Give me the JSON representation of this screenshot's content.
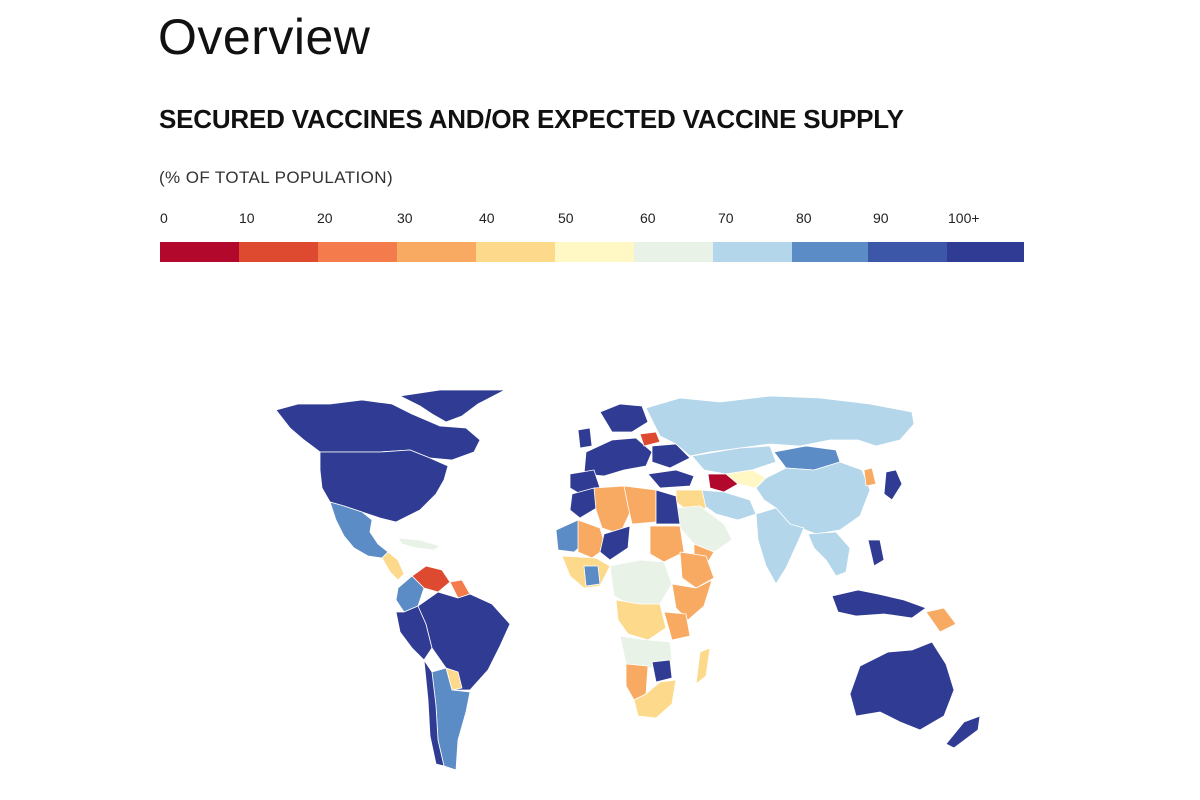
{
  "header": {
    "title": "Overview",
    "section_title": "SECURED VACCINES AND/OR EXPECTED VACCINE SUPPLY",
    "subtitle": "(% OF TOTAL POPULATION)"
  },
  "legend": {
    "ticks": [
      "0",
      "10",
      "20",
      "30",
      "40",
      "50",
      "60",
      "70",
      "80",
      "90",
      "100+"
    ],
    "colors": [
      "#b2082b",
      "#de4a30",
      "#f37b4c",
      "#f9aa62",
      "#fdd98c",
      "#fff8c4",
      "#e8f2e6",
      "#b3d6ea",
      "#5c8cc5",
      "#3c56a8",
      "#303c94"
    ]
  },
  "map": {
    "colors": {
      "ocean": "#ffffff",
      "c100": "#303c94",
      "c90": "#3c56a8",
      "c80": "#5c8cc5",
      "c70": "#b3d6ea",
      "c60": "#e8f2e6",
      "c50": "#fff8c4",
      "c40": "#fdd98c",
      "c30": "#f9aa62",
      "c20": "#f37b4c",
      "c10": "#de4a30",
      "c0": "#b2082b"
    }
  }
}
